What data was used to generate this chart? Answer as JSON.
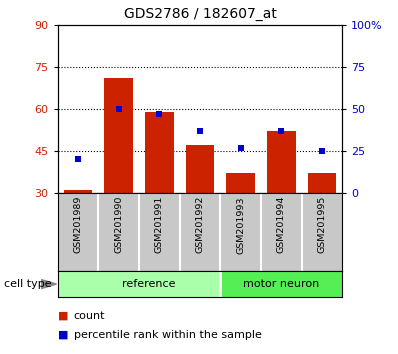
{
  "title": "GDS2786 / 182607_at",
  "samples": [
    "GSM201989",
    "GSM201990",
    "GSM201991",
    "GSM201992",
    "GSM201993",
    "GSM201994",
    "GSM201995"
  ],
  "red_values": [
    31,
    71,
    59,
    47,
    37,
    52,
    37
  ],
  "blue_pct": [
    20,
    50,
    47,
    37,
    27,
    37,
    25
  ],
  "group_boundary": 3.5,
  "ylim_left": [
    30,
    90
  ],
  "ylim_right": [
    0,
    100
  ],
  "yticks_left": [
    30,
    45,
    60,
    75,
    90
  ],
  "yticks_right": [
    0,
    25,
    50,
    75,
    100
  ],
  "ytick_labels_right": [
    "0",
    "25",
    "50",
    "75",
    "100%"
  ],
  "ytick_labels_left": [
    "30",
    "45",
    "60",
    "75",
    "90"
  ],
  "hlines": [
    45,
    60,
    75
  ],
  "bar_color": "#CC2200",
  "marker_color": "#0000CC",
  "bar_width": 0.7,
  "marker_size": 5,
  "label_bg_color": "#C8C8C8",
  "reference_color": "#AAFFAA",
  "motor_neuron_color": "#55EE55",
  "cell_type_label": "cell type",
  "legend_count": "count",
  "legend_pct": "percentile rank within the sample",
  "ref_label": "reference",
  "motor_label": "motor neuron"
}
